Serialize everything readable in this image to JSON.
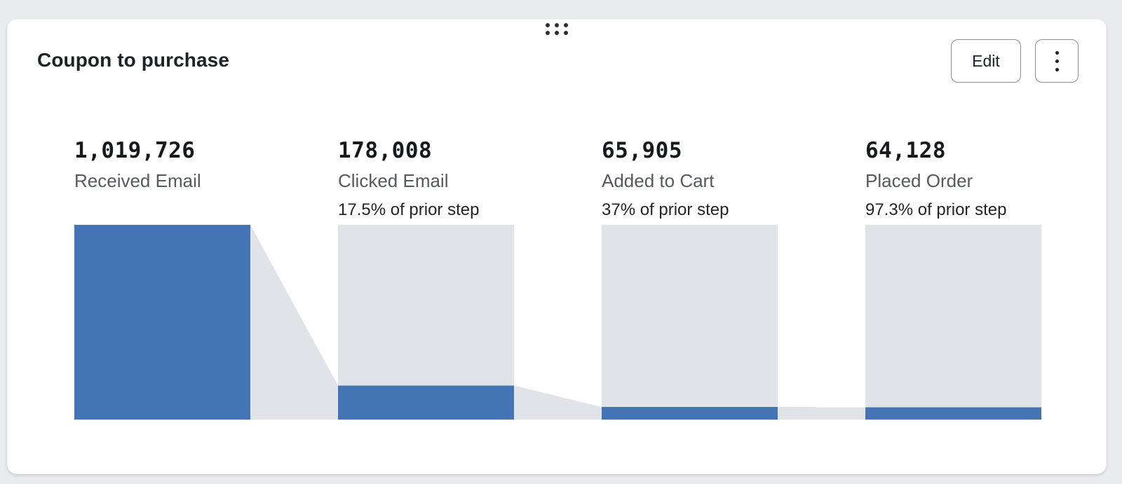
{
  "card": {
    "title": "Coupon to purchase",
    "edit_label": "Edit",
    "menu_icon": "kebab-vertical-icon",
    "drag_handle_icon": "drag-dots-icon"
  },
  "chart_data": {
    "type": "funnel-bar",
    "title": "Coupon to purchase",
    "steps": [
      {
        "label": "Received Email",
        "value": 1019726,
        "value_display": "1,019,726",
        "pct_of_prior": null
      },
      {
        "label": "Clicked Email",
        "value": 178008,
        "value_display": "178,008",
        "pct_of_prior": "17.5% of prior step"
      },
      {
        "label": "Added to Cart",
        "value": 65905,
        "value_display": "65,905",
        "pct_of_prior": "37% of prior step"
      },
      {
        "label": "Placed Order",
        "value": 64128,
        "value_display": "64,128",
        "pct_of_prior": "97.3% of prior step"
      }
    ],
    "scale": "bars scaled relative to first step",
    "colors": {
      "bar_fill": "#4574B4",
      "bar_track": "#E0E3E7",
      "connector": "#E0E3E7"
    },
    "legend": "none",
    "grid": false
  }
}
